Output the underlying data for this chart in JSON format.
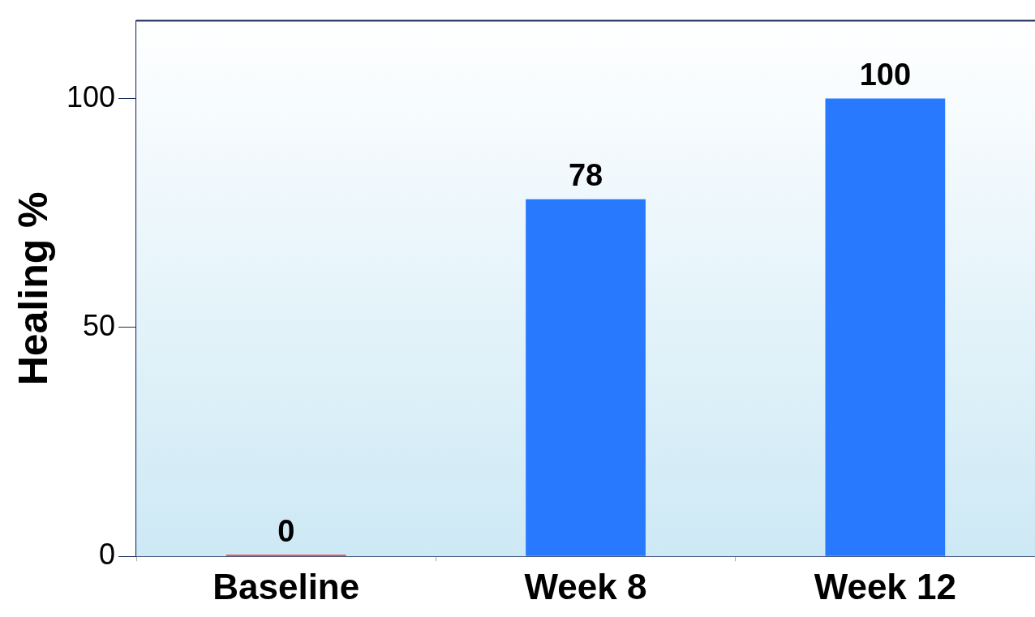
{
  "chart_data": {
    "type": "bar",
    "ylabel": "Healing %",
    "categories": [
      "Baseline",
      "Week 8",
      "Week 12"
    ],
    "values": [
      0,
      78,
      100
    ],
    "colors": [
      "#e8302a",
      "#2979ff",
      "#2979ff"
    ],
    "ylim": [
      0,
      117
    ],
    "yticks": [
      0,
      50,
      100
    ],
    "legend": false,
    "data_labels": true
  }
}
